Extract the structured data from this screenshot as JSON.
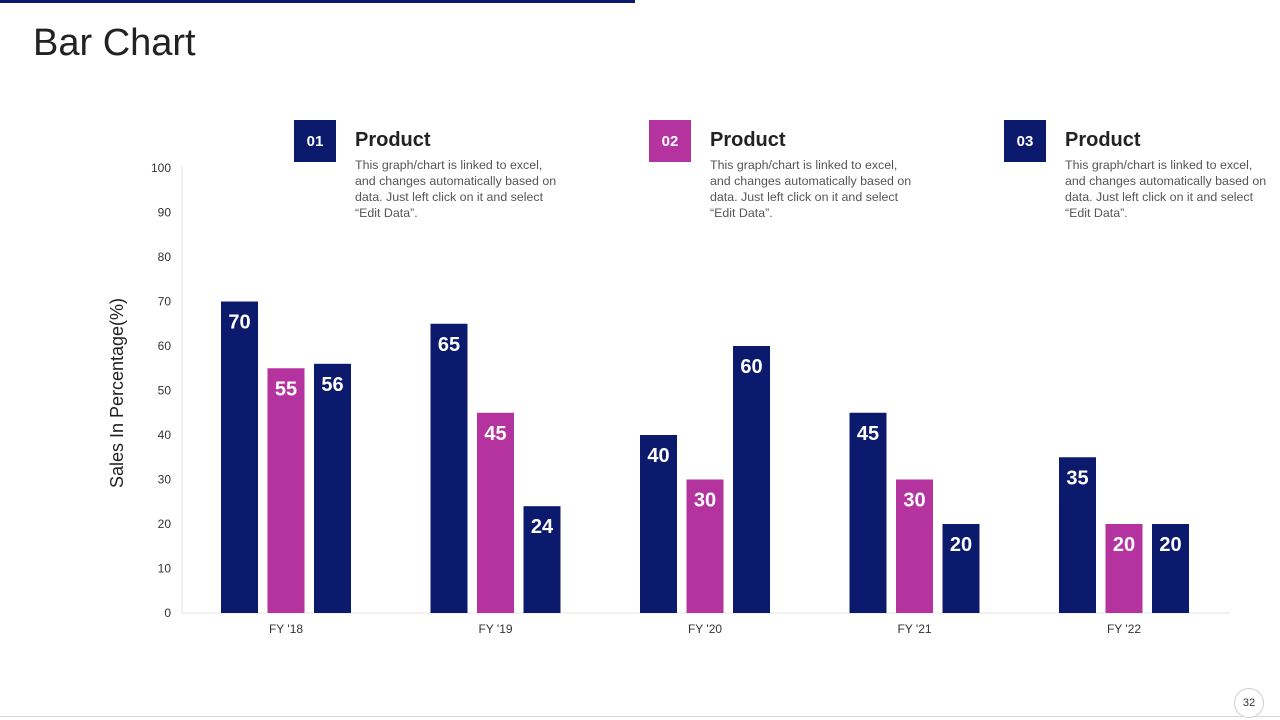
{
  "slide": {
    "title": "Bar Chart",
    "page_number": "32"
  },
  "legend": [
    {
      "number": "01",
      "title": "Product",
      "description": "This graph/chart is linked to excel, and changes automatically based on data. Just left click on it and select “Edit Data”.",
      "color": "#0c1a6e"
    },
    {
      "number": "02",
      "title": "Product",
      "description": "This graph/chart is linked to excel, and changes automatically based on data. Just left click on it and select “Edit Data”.",
      "color": "#b5339f"
    },
    {
      "number": "03",
      "title": "Product",
      "description": "This graph/chart is linked to excel, and changes automatically based on data. Just left click on it and select “Edit Data”.",
      "color": "#0c1a6e"
    }
  ],
  "chart_data": {
    "type": "bar",
    "title": "Bar Chart",
    "xlabel": "",
    "ylabel": "Sales In Percentage(%)",
    "ylim": [
      0,
      100
    ],
    "yticks": [
      0,
      10,
      20,
      30,
      40,
      50,
      60,
      70,
      80,
      90,
      100
    ],
    "categories": [
      "FY '18",
      "FY '19",
      "FY '20",
      "FY '21",
      "FY '22"
    ],
    "series": [
      {
        "name": "Product 01",
        "color": "#0c1a6e",
        "values": [
          70,
          65,
          40,
          45,
          35
        ]
      },
      {
        "name": "Product 02",
        "color": "#b5339f",
        "values": [
          55,
          45,
          30,
          30,
          20
        ]
      },
      {
        "name": "Product 03",
        "color": "#0c1a6e",
        "values": [
          56,
          24,
          60,
          20,
          20
        ]
      }
    ],
    "grid": false
  }
}
